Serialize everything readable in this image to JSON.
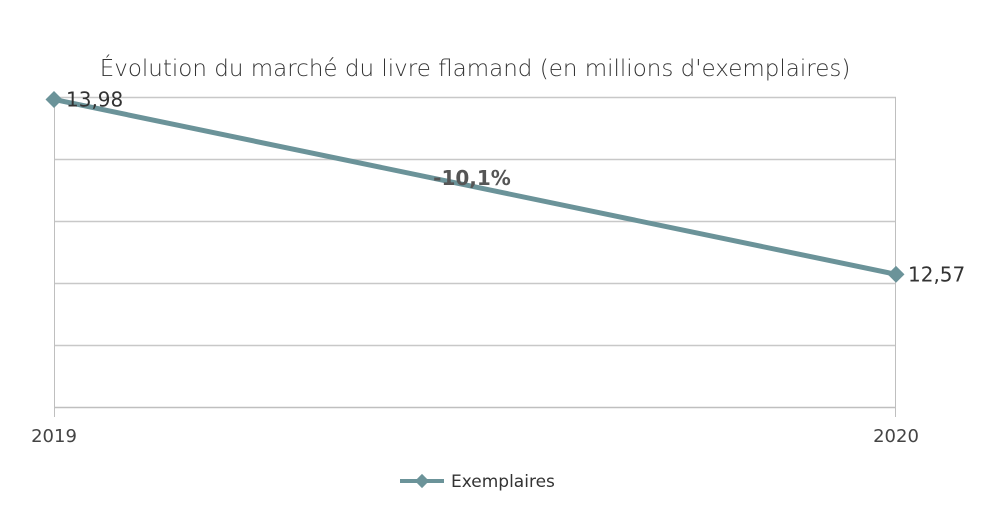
{
  "colors": {
    "series": "#6b9399",
    "grid": "#c8c8c8",
    "axis": "#bfbfbf"
  },
  "chart_data": {
    "type": "line",
    "title": "Évolution du marché du livre flamand (en millions d'exemplaires)",
    "categories": [
      "2019",
      "2020"
    ],
    "series": [
      {
        "name": "Exemplaires",
        "values": [
          13.98,
          12.57
        ],
        "labels": [
          "13,98",
          "12,57"
        ],
        "marker": "diamond"
      }
    ],
    "annotation": "-10,1%",
    "ylim": [
      11.5,
      14.0
    ],
    "ytick_step": 0.5,
    "show_y_tick_labels": false,
    "grid": true,
    "legend": "bottom-center",
    "xlabel": "",
    "ylabel": ""
  }
}
